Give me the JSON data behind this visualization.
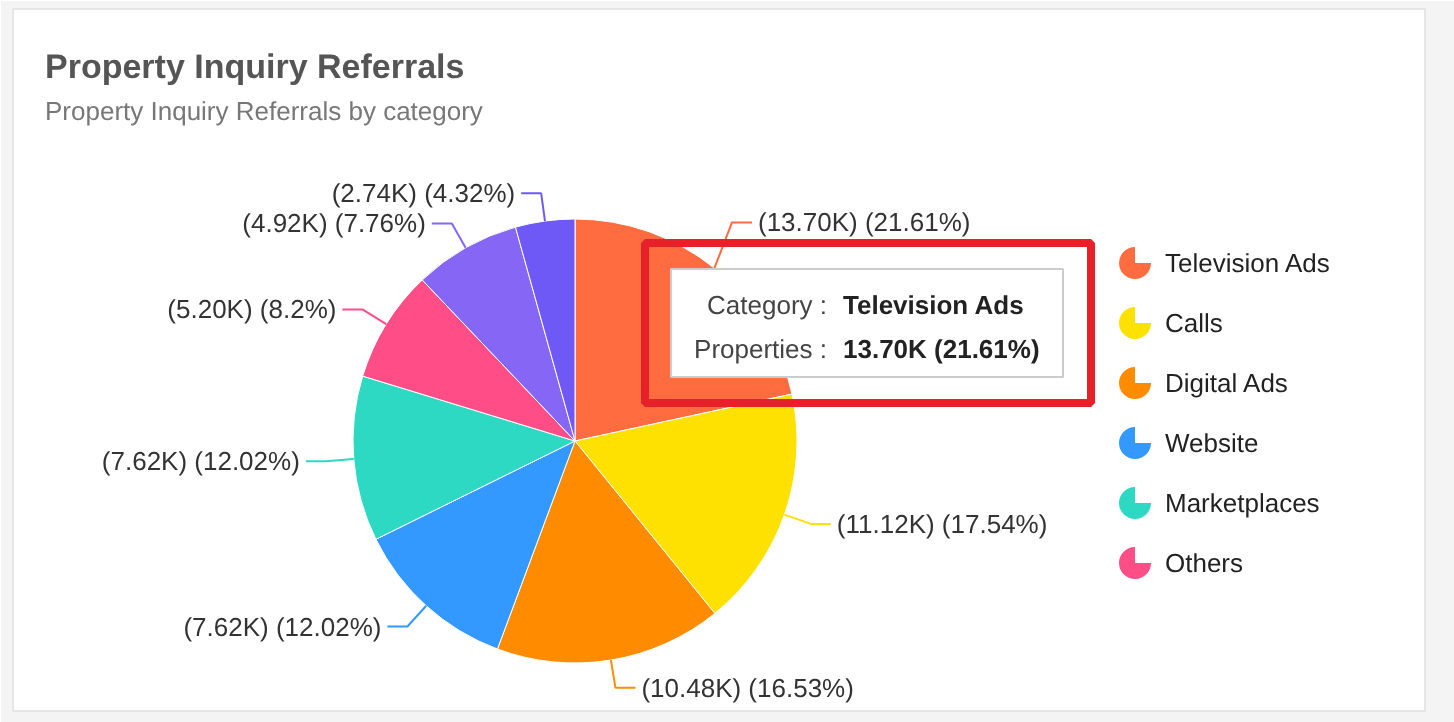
{
  "chart_data": {
    "type": "pie",
    "title": "Property Inquiry Referrals",
    "subtitle": "Property Inquiry Referrals by category",
    "categories": [
      "Television Ads",
      "Calls",
      "Digital Ads",
      "Website",
      "Marketplaces",
      "Others",
      null,
      null
    ],
    "values": [
      21.61,
      17.54,
      16.53,
      12.02,
      12.02,
      8.2,
      7.76,
      4.32
    ],
    "value_labels": [
      "(13.70K) (21.61%)",
      "(11.12K) (17.54%)",
      "(10.48K) (16.53%)",
      "(7.62K) (12.02%)",
      "(7.62K) (12.02%)",
      "(5.20K) (8.2%)",
      "(4.92K) (7.76%)",
      "(2.74K) (4.32%)"
    ],
    "colors": [
      "#ff6c40",
      "#ffe100",
      "#ff8c00",
      "#3399ff",
      "#2ed9c3",
      "#ff4d88",
      "#8566f5",
      "#6e59f7"
    ],
    "legend": "right",
    "annotations": [
      "Category :",
      "Television Ads",
      "Properties :",
      "13.70K (21.61%)"
    ]
  }
}
